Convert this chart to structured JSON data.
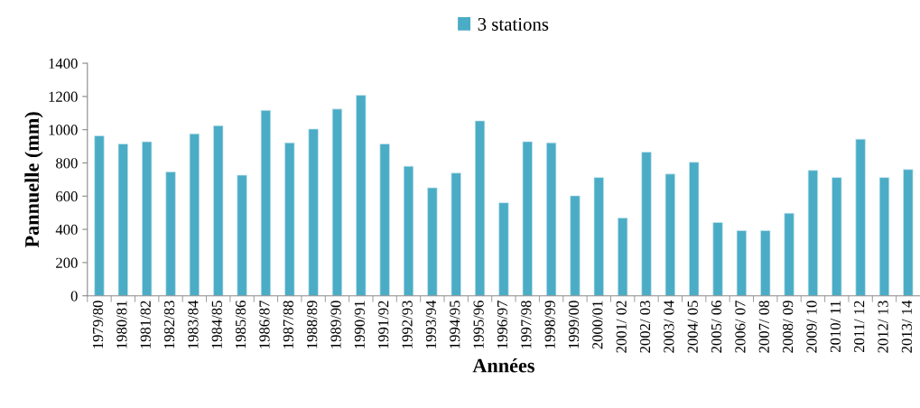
{
  "chart_data": {
    "type": "bar",
    "xlabel": "Années",
    "ylabel": "Pannuelle (mm)",
    "categories": [
      "1979/80",
      "1980/81",
      "1981/82",
      "1982/83",
      "1983/84",
      "1984/85",
      "1985/86",
      "1986/87",
      "1987/88",
      "1988/89",
      "1989/90",
      "1990/91",
      "1991/92",
      "1992/93",
      "1993/94",
      "1994/95",
      "1995/96",
      "1996/97",
      "1997/98",
      "1998/99",
      "1999/00",
      "2000/01",
      "2001/ 02",
      "2002/ 03",
      "2003/ 04",
      "2004/ 05",
      "2005/ 06",
      "2006/ 07",
      "2007/ 08",
      "2008/ 09",
      "2009/ 10",
      "2010/ 11",
      "2011/ 12",
      "2012/ 13",
      "2013/ 14"
    ],
    "series": [
      {
        "name": "3 stations",
        "color": "#4bacc6",
        "values": [
          963,
          914,
          927,
          746,
          975,
          1024,
          726,
          1116,
          921,
          1004,
          1124,
          1207,
          914,
          780,
          650,
          739,
          1053,
          560,
          928,
          921,
          602,
          712,
          468,
          865,
          733,
          804,
          441,
          392,
          392,
          497,
          755,
          712,
          943,
          712,
          760
        ]
      }
    ],
    "ylim": [
      0,
      1400
    ],
    "yticks": [
      0,
      200,
      400,
      600,
      800,
      1000,
      1200,
      1400
    ],
    "grid": false,
    "legend": "top"
  }
}
